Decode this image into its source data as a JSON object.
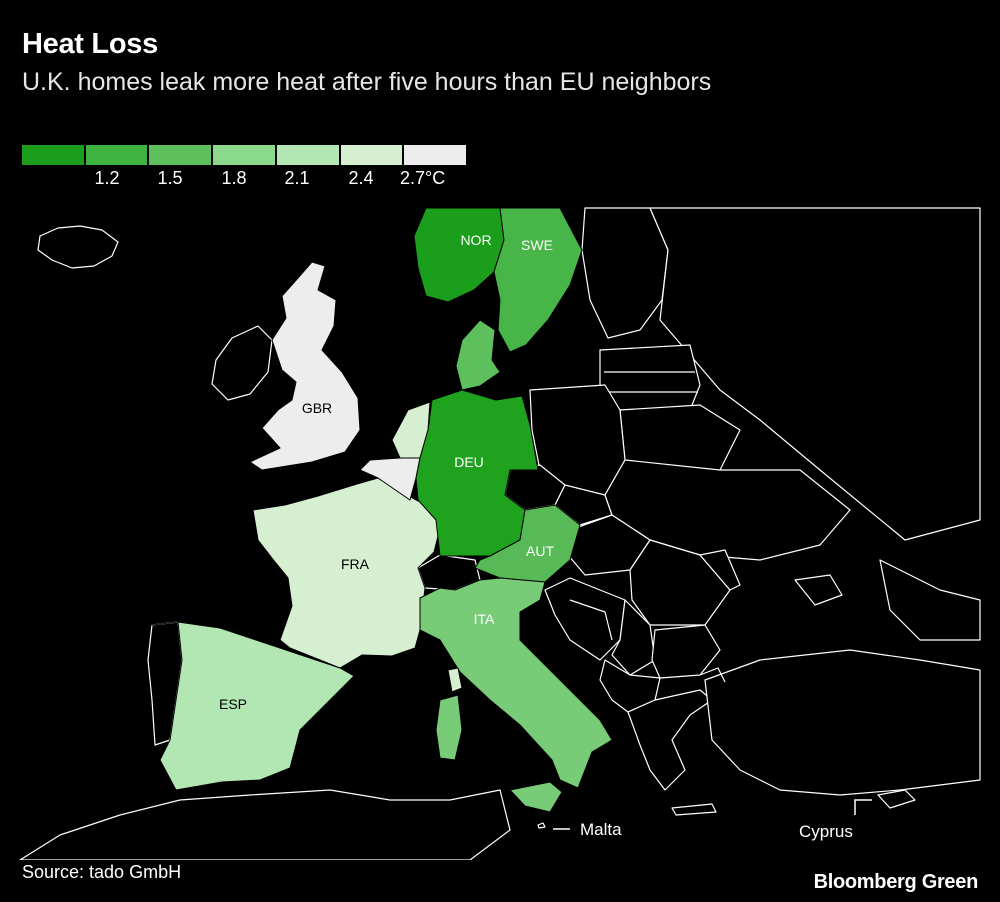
{
  "header": {
    "title": "Heat Loss",
    "subtitle": "U.K. homes leak more heat after five hours than EU neighbors"
  },
  "legend": {
    "colors": [
      "#1b9e1b",
      "#3fb33f",
      "#5dc05d",
      "#8bd98b",
      "#b2e6b2",
      "#d5efd0",
      "#ededed"
    ],
    "ticks": [
      "1.2",
      "1.5",
      "1.8",
      "2.1",
      "2.4",
      "2.7°C"
    ]
  },
  "countries": {
    "nor": {
      "label": "NOR",
      "color": "#1b9e1b"
    },
    "swe": {
      "label": "SWE",
      "color": "#48b548"
    },
    "deu": {
      "label": "DEU",
      "color": "#1fa31f"
    },
    "aut": {
      "label": "AUT",
      "color": "#57ba57"
    },
    "ita": {
      "label": "ITA",
      "color": "#78cc78"
    },
    "dnk": {
      "label": "",
      "color": "#5dc05d"
    },
    "nld": {
      "label": "",
      "color": "#d5efd0"
    },
    "bel": {
      "label": "",
      "color": "#ededed"
    },
    "gbr": {
      "label": "GBR",
      "color": "#ededed"
    },
    "fra": {
      "label": "FRA",
      "color": "#d5efd0"
    },
    "esp": {
      "label": "ESP",
      "color": "#b2e6b2"
    }
  },
  "annotations": {
    "malta": "Malta",
    "cyprus": "Cyprus"
  },
  "footer": {
    "source": "Source: tado GmbH",
    "brand": "Bloomberg Green"
  }
}
